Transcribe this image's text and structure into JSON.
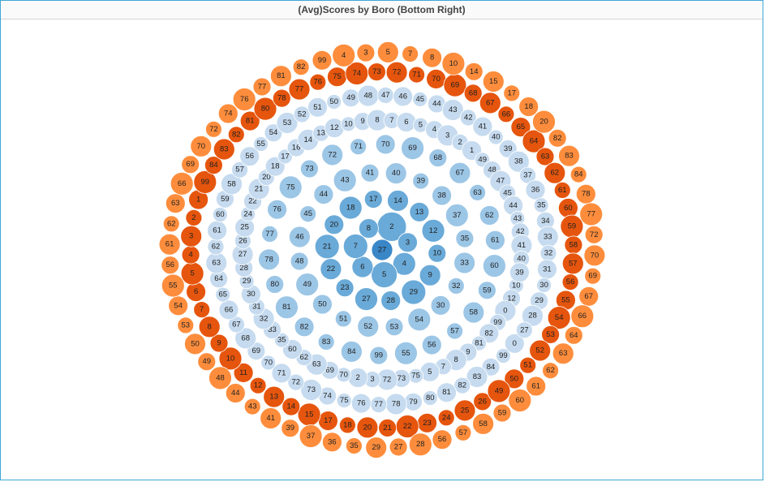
{
  "chart_data": {
    "type": "bubble",
    "title": "(Avg)Scores by Boro (Bottom Right)",
    "colors": {
      "rings": [
        "#3a87c8",
        "#6aaad8",
        "#9cc6e6",
        "#c6dbef",
        "#e6550d",
        "#fd8d3c"
      ]
    },
    "rings": [
      {
        "ring": 0,
        "bubbles": [
          27
        ]
      },
      {
        "ring": 1,
        "bubbles": [
          2,
          3,
          4,
          5,
          6,
          7,
          8
        ]
      },
      {
        "ring": 2,
        "bubbles": [
          13,
          12,
          10,
          9,
          29,
          28,
          27,
          23,
          22,
          21,
          20,
          18,
          17,
          14
        ]
      },
      {
        "ring": 3,
        "bubbles": [
          37,
          35,
          33,
          32,
          30,
          54,
          53,
          52,
          51,
          50,
          49,
          48,
          46,
          45,
          44,
          43,
          41,
          40,
          39,
          38
        ]
      },
      {
        "ring": 4,
        "bubbles": [
          61,
          60,
          59,
          58,
          57,
          56,
          55,
          99,
          84,
          83,
          82,
          81,
          80,
          78,
          77,
          76,
          75,
          73,
          72,
          71,
          70,
          69,
          68,
          67,
          63,
          62
        ]
      },
      {
        "ring": 5,
        "bubbles": [
          10,
          12,
          0,
          99,
          82,
          81,
          9,
          8,
          7,
          5,
          75,
          73,
          72,
          3,
          2,
          70,
          69,
          63,
          62,
          60,
          35,
          33,
          32,
          31,
          30,
          29,
          28,
          27,
          26,
          25,
          24,
          22,
          21,
          20,
          18,
          17,
          16,
          14,
          13,
          12,
          10,
          9,
          8,
          7,
          6,
          5,
          4,
          3,
          2,
          1,
          49,
          48,
          47,
          45,
          44,
          43,
          42,
          41,
          40,
          39
        ]
      },
      {
        "ring": 6,
        "bubbles": [
          0,
          99,
          84,
          83,
          82,
          81,
          80,
          79,
          78,
          77,
          76,
          75,
          74,
          73,
          72,
          71,
          70,
          69,
          68,
          67,
          66,
          65,
          64,
          63,
          62,
          61,
          60,
          59,
          58,
          57,
          56,
          55,
          54,
          53,
          52,
          51,
          50,
          49,
          48,
          47,
          46,
          45,
          44,
          43,
          42,
          41,
          40,
          39,
          38,
          37,
          36,
          35,
          34,
          33,
          32,
          31,
          30,
          29,
          28,
          27
        ]
      },
      {
        "ring": 7,
        "bubbles": [
          26,
          25,
          24,
          23,
          22,
          21,
          20,
          18,
          17,
          15,
          14,
          13,
          12,
          11,
          10,
          9,
          8,
          7,
          6,
          5,
          4,
          3,
          2,
          1,
          99,
          84,
          83,
          82,
          81,
          80,
          78,
          77,
          76,
          75,
          74,
          73,
          72,
          71,
          70,
          69,
          68,
          67,
          66,
          65,
          64,
          63,
          62,
          61,
          60,
          59,
          58,
          57,
          56,
          55,
          54,
          53,
          52,
          51,
          50,
          49
        ]
      },
      {
        "ring": 8,
        "bubbles": [
          28,
          27,
          29,
          35,
          36,
          37,
          39,
          41,
          43,
          44,
          48,
          49,
          50,
          53,
          54,
          55,
          56,
          61,
          62,
          63,
          66,
          69,
          70,
          72,
          74,
          76,
          77,
          81,
          82,
          99,
          4,
          3,
          5,
          7,
          8,
          10,
          14,
          15,
          17,
          18,
          20,
          82,
          83,
          84,
          78,
          77,
          72,
          70,
          69,
          67,
          66,
          64,
          63,
          62,
          61,
          60,
          59,
          58,
          57,
          56
        ]
      }
    ]
  }
}
